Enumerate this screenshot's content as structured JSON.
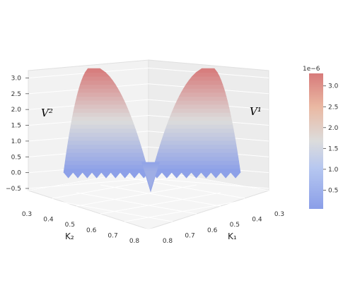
{
  "chart_data": {
    "type": "surface3d",
    "title": "",
    "x_axis": {
      "label": "K₁",
      "ticks": [
        "0.3",
        "0.4",
        "0.5",
        "0.6",
        "0.7",
        "0.8"
      ],
      "range": [
        0.3,
        0.8
      ]
    },
    "y_axis": {
      "label": "K₂",
      "ticks": [
        "0.3",
        "0.4",
        "0.5",
        "0.6",
        "0.7",
        "0.8"
      ],
      "range": [
        0.3,
        0.8
      ]
    },
    "z_axis": {
      "ticks": [
        "−0.5",
        "0.0",
        "0.5",
        "1.0",
        "1.5",
        "2.0",
        "2.5",
        "3.0"
      ],
      "range": [
        -0.5,
        3.3
      ]
    },
    "surfaces": [
      {
        "name": "V¹",
        "peak": 3.3,
        "base": 0.0
      },
      {
        "name": "V²",
        "peak": 3.3,
        "base": 0.0
      }
    ],
    "colormap": "coolwarm",
    "colorbar": {
      "offset_label": "1e−6",
      "ticks": [
        "0.5",
        "1.0",
        "1.5",
        "2.0",
        "2.5",
        "3.0"
      ],
      "range": [
        0.05,
        3.3
      ],
      "colors": {
        "low": "#8a9ee8",
        "mid": "#dcdcdc",
        "high": "#d77a7a"
      }
    },
    "grid": true,
    "background": "#f2f2f2"
  }
}
